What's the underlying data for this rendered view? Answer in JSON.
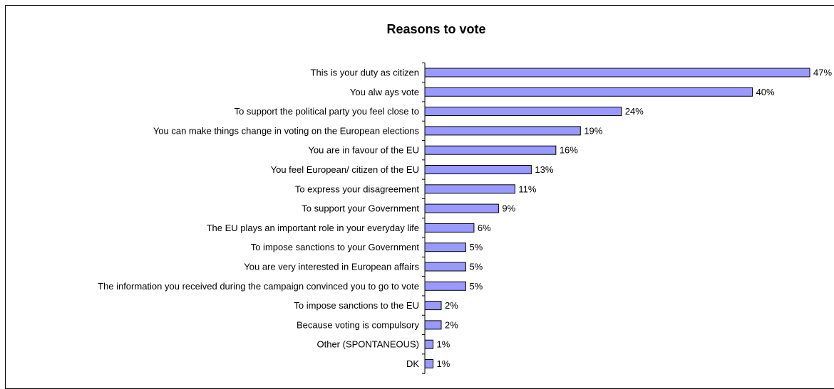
{
  "chart_data": {
    "type": "bar",
    "orientation": "horizontal",
    "title": "Reasons to vote",
    "xlabel": "",
    "ylabel": "",
    "xlim": [
      0,
      47
    ],
    "grid": false,
    "legend": "none",
    "bar_color": "#9999ff",
    "bar_border_color": "#000000",
    "categories": [
      "This is your duty as citizen",
      "You alw ays vote",
      "To support the political party you feel close to",
      "You can make things change in voting on the European elections",
      "You are in favour of the EU",
      "You feel European/ citizen of the EU",
      "To express your disagreement",
      "To support your Government",
      "The EU plays an important role in your everyday life",
      "To impose sanctions to your Government",
      "You are very interested in European affairs",
      "The information you received during the campaign convinced you to go to vote",
      "To impose sanctions to the EU",
      "Because voting is compulsory",
      "Other (SPONTANEOUS)",
      "DK"
    ],
    "values": [
      47,
      40,
      24,
      19,
      16,
      13,
      11,
      9,
      6,
      5,
      5,
      5,
      2,
      2,
      1,
      1
    ],
    "value_labels": [
      "47%",
      "40%",
      "24%",
      "19%",
      "16%",
      "13%",
      "11%",
      "9%",
      "6%",
      "5%",
      "5%",
      "5%",
      "2%",
      "2%",
      "1%",
      "1%"
    ]
  }
}
